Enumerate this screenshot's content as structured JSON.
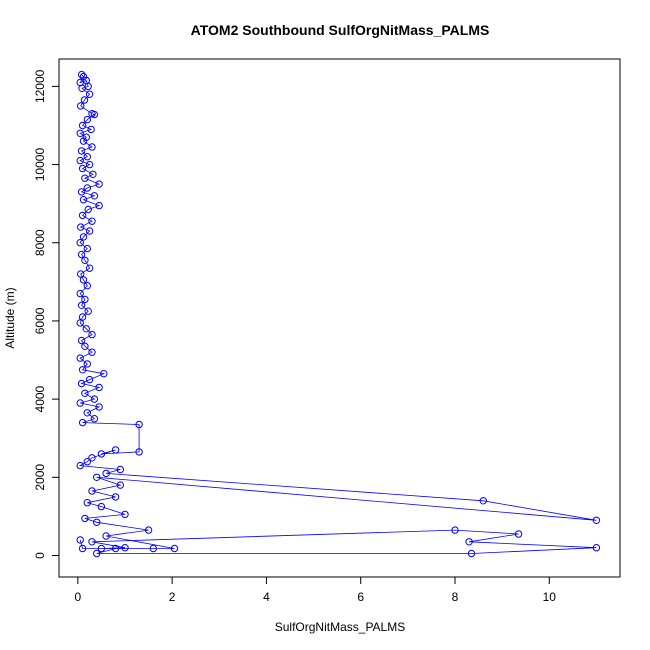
{
  "chart_data": {
    "type": "line",
    "title": "ATOM2 Southbound SulfOrgNitMass_PALMS",
    "xlabel": "SulfOrgNitMass_PALMS",
    "ylabel": "Altitude (m)",
    "xlim": [
      -0.4,
      11.5
    ],
    "ylim": [
      -550,
      12700
    ],
    "x_ticks": [
      0,
      2,
      4,
      6,
      8,
      10
    ],
    "x_tick_labels": [
      "0",
      "2",
      "4",
      "6",
      "8",
      "10"
    ],
    "y_ticks": [
      0,
      2000,
      4000,
      6000,
      8000,
      10000,
      12000
    ],
    "y_tick_labels": [
      "0",
      "2000",
      "4000",
      "6000",
      "8000",
      "10000",
      "12000"
    ],
    "grid": false,
    "colors": {
      "series": "#0000ff"
    },
    "series": [
      {
        "points": [
          [
            0.08,
            12300
          ],
          [
            0.12,
            12250
          ],
          [
            0.05,
            12100
          ],
          [
            0.18,
            12150
          ],
          [
            0.22,
            12000
          ],
          [
            0.09,
            11950
          ],
          [
            0.25,
            11800
          ],
          [
            0.14,
            11650
          ],
          [
            0.06,
            11500
          ],
          [
            0.3,
            11300
          ],
          [
            0.35,
            11280
          ],
          [
            0.2,
            11150
          ],
          [
            0.1,
            11000
          ],
          [
            0.28,
            10900
          ],
          [
            0.05,
            10800
          ],
          [
            0.18,
            10700
          ],
          [
            0.12,
            10600
          ],
          [
            0.3,
            10450
          ],
          [
            0.08,
            10350
          ],
          [
            0.2,
            10200
          ],
          [
            0.05,
            10100
          ],
          [
            0.25,
            10000
          ],
          [
            0.1,
            9900
          ],
          [
            0.32,
            9750
          ],
          [
            0.15,
            9650
          ],
          [
            0.45,
            9500
          ],
          [
            0.2,
            9400
          ],
          [
            0.08,
            9300
          ],
          [
            0.35,
            9200
          ],
          [
            0.12,
            9100
          ],
          [
            0.45,
            8950
          ],
          [
            0.22,
            8850
          ],
          [
            0.1,
            8700
          ],
          [
            0.3,
            8550
          ],
          [
            0.06,
            8400
          ],
          [
            0.25,
            8300
          ],
          [
            0.12,
            8150
          ],
          [
            0.05,
            8000
          ],
          [
            0.2,
            7850
          ],
          [
            0.08,
            7700
          ],
          [
            0.15,
            7550
          ],
          [
            0.25,
            7350
          ],
          [
            0.06,
            7200
          ],
          [
            0.12,
            7050
          ],
          [
            0.2,
            6900
          ],
          [
            0.05,
            6700
          ],
          [
            0.15,
            6550
          ],
          [
            0.08,
            6400
          ],
          [
            0.22,
            6250
          ],
          [
            0.1,
            6100
          ],
          [
            0.05,
            5950
          ],
          [
            0.18,
            5800
          ],
          [
            0.3,
            5650
          ],
          [
            0.08,
            5500
          ],
          [
            0.15,
            5350
          ],
          [
            0.3,
            5200
          ],
          [
            0.05,
            5050
          ],
          [
            0.2,
            4900
          ],
          [
            0.1,
            4750
          ],
          [
            0.55,
            4650
          ],
          [
            0.25,
            4500
          ],
          [
            0.08,
            4400
          ],
          [
            0.45,
            4300
          ],
          [
            0.15,
            4150
          ],
          [
            0.35,
            4000
          ],
          [
            0.05,
            3900
          ],
          [
            0.45,
            3800
          ],
          [
            0.2,
            3650
          ],
          [
            0.35,
            3500
          ],
          [
            0.1,
            3400
          ],
          [
            1.3,
            3350
          ],
          [
            1.3,
            2650
          ],
          [
            0.5,
            2600
          ],
          [
            0.8,
            2700
          ],
          [
            0.3,
            2500
          ],
          [
            0.2,
            2400
          ],
          [
            0.05,
            2300
          ],
          [
            0.9,
            2200
          ],
          [
            0.6,
            2100
          ],
          [
            8.6,
            1400
          ],
          [
            11.0,
            900
          ],
          [
            0.4,
            2000
          ],
          [
            0.9,
            1800
          ],
          [
            0.3,
            1650
          ],
          [
            0.8,
            1500
          ],
          [
            0.2,
            1350
          ],
          [
            0.5,
            1250
          ],
          [
            1.0,
            1050
          ],
          [
            0.15,
            950
          ],
          [
            0.4,
            850
          ],
          [
            1.5,
            650
          ],
          [
            0.6,
            500
          ],
          [
            2.05,
            180
          ],
          [
            1.6,
            180
          ],
          [
            0.5,
            180
          ],
          [
            1.0,
            200
          ],
          [
            0.3,
            350
          ],
          [
            8.0,
            650
          ],
          [
            9.35,
            550
          ],
          [
            8.3,
            350
          ],
          [
            11.0,
            200
          ],
          [
            8.35,
            50
          ],
          [
            0.4,
            50
          ],
          [
            0.8,
            180
          ],
          [
            0.1,
            180
          ],
          [
            0.05,
            400
          ]
        ]
      }
    ]
  }
}
